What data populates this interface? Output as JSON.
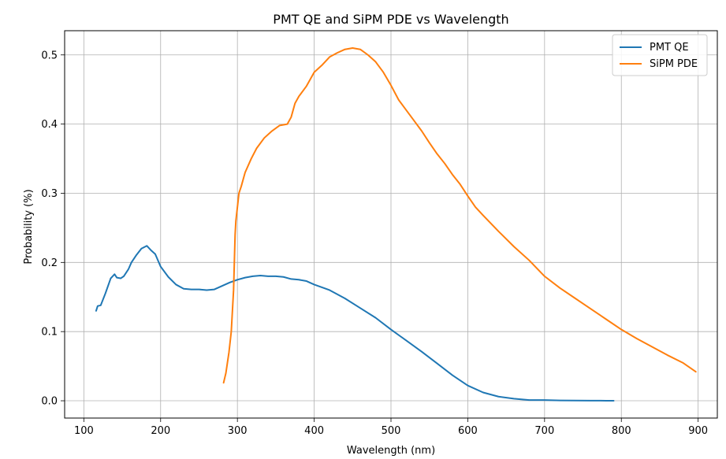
{
  "chart_data": {
    "type": "line",
    "title": "PMT QE and SiPM PDE vs Wavelength",
    "xlabel": "Wavelength (nm)",
    "ylabel": "Probability (%)",
    "xlim": [
      75,
      925
    ],
    "ylim": [
      -0.025,
      0.535
    ],
    "xticks": [
      100,
      200,
      300,
      400,
      500,
      600,
      700,
      800,
      900
    ],
    "yticks": [
      0.0,
      0.1,
      0.2,
      0.3,
      0.4,
      0.5
    ],
    "xtick_labels": [
      "100",
      "200",
      "300",
      "400",
      "500",
      "600",
      "700",
      "800",
      "900"
    ],
    "ytick_labels": [
      "0.0",
      "0.1",
      "0.2",
      "0.3",
      "0.4",
      "0.5"
    ],
    "grid": true,
    "legend_position": "top-right",
    "series": [
      {
        "name": "PMT QE",
        "color": "#1f77b4",
        "x": [
          116,
          118,
          122,
          128,
          135,
          140,
          143,
          148,
          152,
          158,
          162,
          168,
          175,
          182,
          188,
          193,
          200,
          210,
          220,
          230,
          240,
          250,
          260,
          270,
          280,
          290,
          300,
          310,
          320,
          330,
          340,
          350,
          360,
          370,
          380,
          390,
          400,
          420,
          440,
          460,
          480,
          500,
          520,
          540,
          560,
          580,
          600,
          620,
          640,
          660,
          680,
          700,
          720,
          740,
          760,
          780,
          790
        ],
        "y": [
          0.13,
          0.137,
          0.138,
          0.155,
          0.177,
          0.183,
          0.178,
          0.177,
          0.18,
          0.19,
          0.2,
          0.21,
          0.22,
          0.224,
          0.217,
          0.212,
          0.194,
          0.179,
          0.168,
          0.162,
          0.161,
          0.161,
          0.16,
          0.161,
          0.166,
          0.171,
          0.175,
          0.178,
          0.18,
          0.181,
          0.18,
          0.18,
          0.179,
          0.176,
          0.175,
          0.173,
          0.168,
          0.16,
          0.148,
          0.134,
          0.12,
          0.103,
          0.087,
          0.071,
          0.054,
          0.037,
          0.022,
          0.012,
          0.006,
          0.003,
          0.001,
          0.001,
          0.0005,
          0.0003,
          0.0002,
          0.0001,
          0.0001
        ]
      },
      {
        "name": "SiPM PDE",
        "color": "#ff7f0e",
        "x": [
          282,
          285,
          289,
          292,
          294,
          295,
          296,
          297,
          298,
          300,
          302,
          305,
          310,
          318,
          325,
          335,
          345,
          355,
          365,
          370,
          375,
          380,
          390,
          400,
          410,
          420,
          430,
          440,
          450,
          460,
          470,
          480,
          490,
          500,
          510,
          520,
          530,
          540,
          550,
          560,
          570,
          580,
          590,
          600,
          610,
          620,
          640,
          660,
          680,
          700,
          720,
          740,
          760,
          780,
          800,
          820,
          840,
          860,
          880,
          897
        ],
        "y": [
          0.026,
          0.04,
          0.07,
          0.1,
          0.14,
          0.16,
          0.2,
          0.24,
          0.26,
          0.28,
          0.3,
          0.31,
          0.33,
          0.35,
          0.365,
          0.38,
          0.39,
          0.398,
          0.4,
          0.41,
          0.43,
          0.44,
          0.455,
          0.475,
          0.485,
          0.497,
          0.503,
          0.508,
          0.51,
          0.508,
          0.5,
          0.49,
          0.475,
          0.456,
          0.435,
          0.42,
          0.405,
          0.39,
          0.373,
          0.357,
          0.343,
          0.327,
          0.313,
          0.296,
          0.28,
          0.268,
          0.245,
          0.223,
          0.203,
          0.18,
          0.163,
          0.148,
          0.133,
          0.118,
          0.103,
          0.09,
          0.078,
          0.066,
          0.055,
          0.042
        ]
      }
    ]
  }
}
